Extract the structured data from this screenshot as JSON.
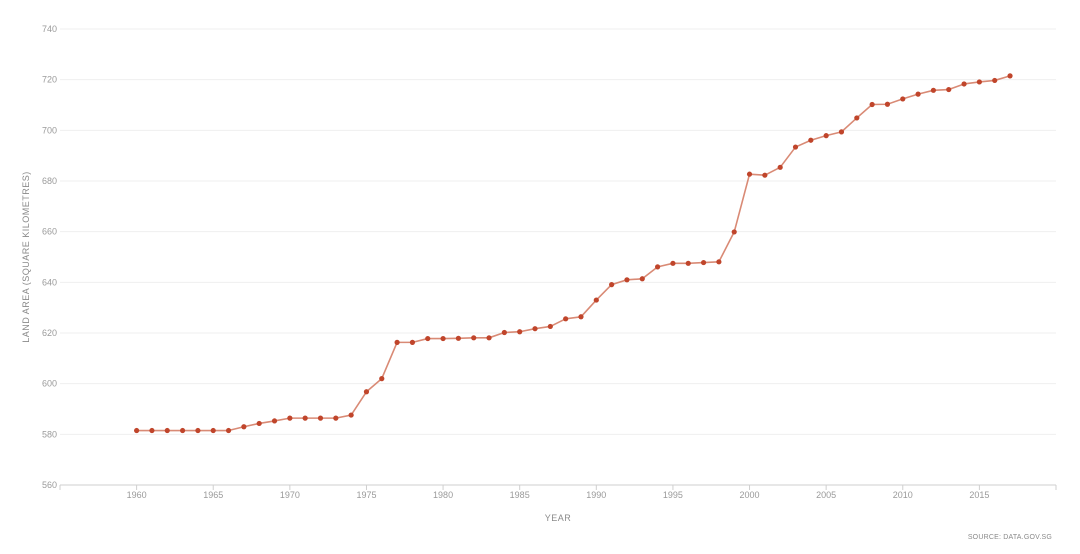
{
  "colors": {
    "line": "#d98a75",
    "point": "#c0452b"
  },
  "chart_data": {
    "type": "line",
    "title": "",
    "xlabel": "YEAR",
    "ylabel": "LAND AREA (SQUARE KILOMETRES)",
    "source": "SOURCE: DATA.GOV.SG",
    "xlim": [
      1955,
      2020
    ],
    "ylim": [
      560,
      740
    ],
    "x_ticks": [
      "1960",
      "1965",
      "1970",
      "1975",
      "1980",
      "1985",
      "1990",
      "1995",
      "2000",
      "2005",
      "2010",
      "2015"
    ],
    "y_ticks": [
      "560",
      "580",
      "600",
      "620",
      "640",
      "660",
      "680",
      "700",
      "720",
      "740"
    ],
    "grid": true,
    "x": [
      1960,
      1961,
      1962,
      1963,
      1964,
      1965,
      1966,
      1967,
      1968,
      1969,
      1970,
      1971,
      1972,
      1973,
      1974,
      1975,
      1976,
      1977,
      1978,
      1979,
      1980,
      1981,
      1982,
      1983,
      1984,
      1985,
      1986,
      1987,
      1988,
      1989,
      1990,
      1991,
      1992,
      1993,
      1994,
      1995,
      1996,
      1997,
      1998,
      1999,
      2000,
      2001,
      2002,
      2003,
      2004,
      2005,
      2006,
      2007,
      2008,
      2009,
      2010,
      2011,
      2012,
      2013,
      2014,
      2015,
      2016,
      2017
    ],
    "values": [
      581.5,
      581.5,
      581.5,
      581.5,
      581.5,
      581.5,
      581.5,
      583,
      584.3,
      585.3,
      586.4,
      586.4,
      586.4,
      586.4,
      587.6,
      596.8,
      602,
      616.3,
      616.3,
      617.8,
      617.8,
      617.9,
      618.1,
      618.1,
      620.2,
      620.5,
      621.7,
      622.6,
      625.6,
      626.4,
      633,
      639.1,
      641,
      641.4,
      646.1,
      647.5,
      647.5,
      647.8,
      648.1,
      659.9,
      682.7,
      682.3,
      685.4,
      693.4,
      696.1,
      697.9,
      699.4,
      704.9,
      710.2,
      710.3,
      712.4,
      714.3,
      715.8,
      716.1,
      718.3,
      719.1,
      719.7,
      721.5
    ]
  }
}
